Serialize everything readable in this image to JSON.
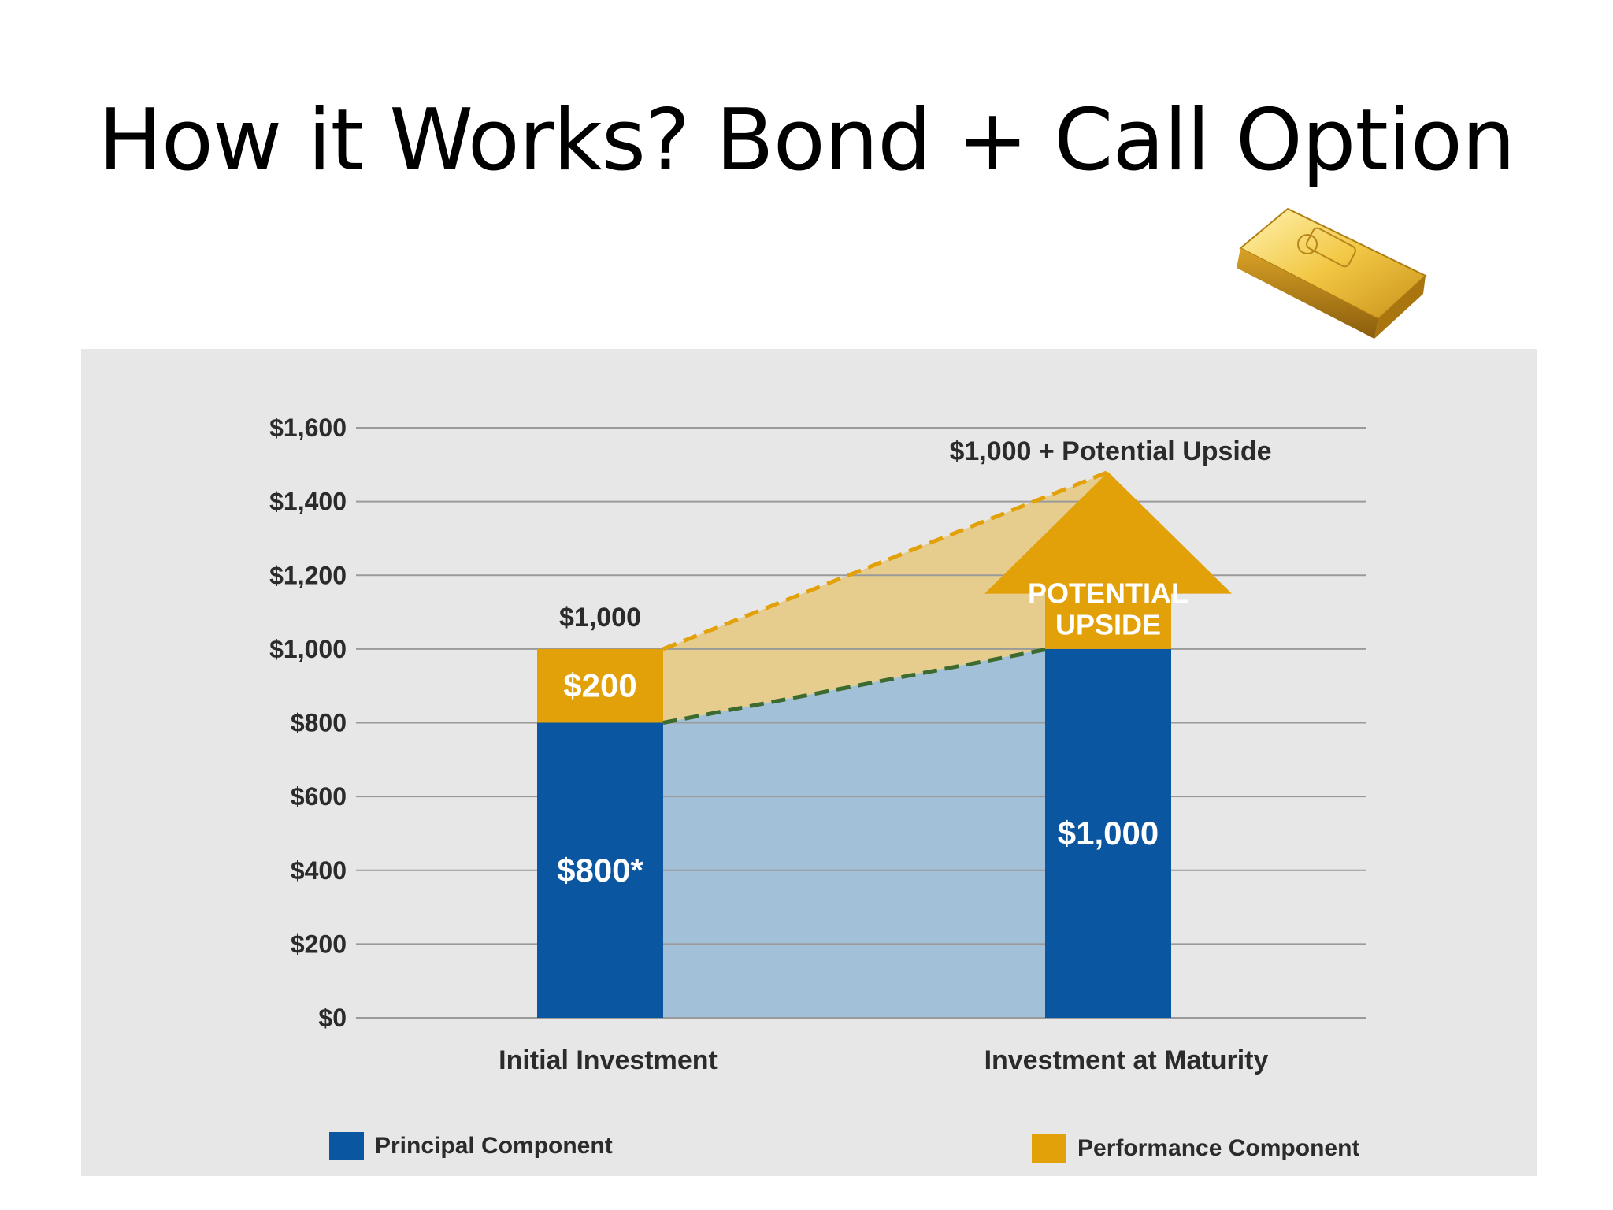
{
  "slide": {
    "title": "How it Works? Bond + Call Option",
    "gold_bar_icon": "gold-bar-icon"
  },
  "chart_data": {
    "type": "bar",
    "stacked": true,
    "categories": [
      "Initial Investment",
      "Investment at Maturity"
    ],
    "series": [
      {
        "name": "Principal Component",
        "values": [
          800,
          1000
        ],
        "color": "#0a56a0",
        "labels": [
          "$800*",
          "$1,000"
        ]
      },
      {
        "name": "Performance Component",
        "values": [
          200,
          0
        ],
        "color": "#e2a009",
        "labels": [
          "$200",
          ""
        ]
      }
    ],
    "ylim": [
      0,
      1600
    ],
    "y_ticks": [
      0,
      200,
      400,
      600,
      800,
      1000,
      1200,
      1400,
      1600
    ],
    "y_tick_labels": [
      "$0",
      "$200",
      "$400",
      "$600",
      "$800",
      "$1,000",
      "$1,200",
      "$1,400",
      "$1,600"
    ],
    "grid": true,
    "legend_position": "bottom",
    "total_labels": [
      "$1,000",
      ""
    ],
    "upside": {
      "arrow_label_line1": "POTENTIAL",
      "arrow_label_line2": "UPSIDE",
      "peak_value": 1480,
      "annotation": "$1,000 + Potential Upside"
    },
    "colors": {
      "principal": "#0a56a0",
      "performance": "#e2a009",
      "principal_area": "#a2c1d9",
      "performance_area": "#e6cd8e",
      "grid": "#9a9a9a",
      "dash_orange": "#e2a009",
      "dash_green": "#3d6b2f"
    }
  }
}
